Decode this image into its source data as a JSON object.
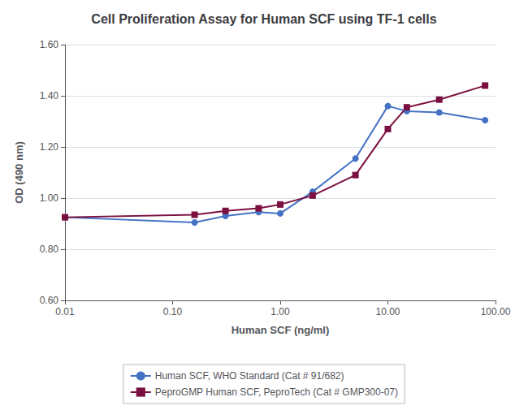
{
  "chart_data": {
    "type": "line",
    "title": "Cell Proliferation Assay for Human SCF using TF-1 cells",
    "x_label": "Human SCF (ng/ml)",
    "y_label": "OD (490 nm)",
    "x": [
      0.01,
      0.16,
      0.31,
      0.63,
      1.0,
      2.0,
      5.0,
      10.0,
      15.0,
      30.0,
      80.0
    ],
    "series": [
      {
        "name": "Human SCF, WHO Standard (Cat # 91/682)",
        "color": "#4472C4",
        "marker": "circle",
        "values": [
          0.925,
          0.905,
          0.93,
          0.945,
          0.94,
          1.025,
          1.155,
          1.36,
          1.34,
          1.335,
          1.305
        ]
      },
      {
        "name": "PeproGMP Human SCF, PeproTech (Cat # GMP300-07)",
        "color": "#7B1040",
        "marker": "square",
        "values": [
          0.925,
          0.935,
          0.95,
          0.96,
          0.975,
          1.01,
          1.09,
          1.27,
          1.355,
          1.385,
          1.44
        ]
      }
    ],
    "log": "x",
    "xlim": [
      0.01,
      100.0
    ],
    "xticks": [
      0.01,
      {
        "value": 0.1,
        "label": "0.10"
      },
      {
        "value": 1.0,
        "label": "1.00"
      },
      {
        "value": 10.0,
        "label": "10.00"
      },
      {
        "value": 100.0,
        "label": "100.00"
      }
    ],
    "ylim": [
      0.6,
      1.6
    ],
    "yticks": [
      {
        "value": 0.6,
        "label": "0.60"
      },
      {
        "value": 0.8,
        "label": "0.80"
      },
      {
        "value": 1.0,
        "label": "1.00"
      },
      {
        "value": 1.2,
        "label": "1.20"
      },
      {
        "value": 1.4,
        "label": "1.40"
      },
      {
        "value": 1.6,
        "label": "1.60"
      }
    ],
    "grid": true,
    "legend": "bottom"
  }
}
